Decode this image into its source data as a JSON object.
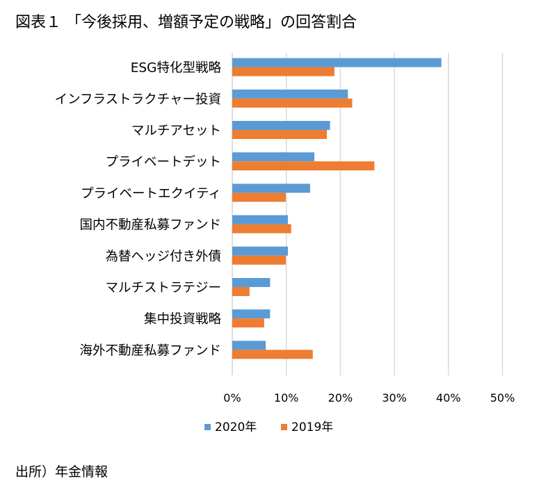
{
  "title": "図表１ 「今後採用、増額予定の戦略」の回答割合",
  "source": "出所）年金情報",
  "chart_data": {
    "type": "bar",
    "orientation": "horizontal",
    "title": "",
    "xlabel": "",
    "ylabel": "",
    "categories": [
      "ESG特化型戦略",
      "インフラストラクチャー投資",
      "マルチアセット",
      "プライベートデット",
      "プライベートエクイティ",
      "国内不動産私募ファンド",
      "為替ヘッジ付き外債",
      "マルチストラテジー",
      "集中投資戦略",
      "海外不動産私募ファンド"
    ],
    "series": [
      {
        "name": "2020年",
        "color": "#5b9bd5",
        "values": [
          38.7,
          21.4,
          18.1,
          15.2,
          14.4,
          10.3,
          10.3,
          7.0,
          7.0,
          6.2
        ]
      },
      {
        "name": "2019年",
        "color": "#ed7d31",
        "values": [
          18.9,
          22.2,
          17.5,
          26.3,
          9.9,
          10.9,
          9.9,
          3.2,
          5.9,
          14.9
        ]
      }
    ],
    "xlim": [
      0,
      50
    ],
    "xticks": [
      0,
      10,
      20,
      30,
      40,
      50
    ],
    "tick_labels": [
      "0%",
      "10%",
      "20%",
      "30%",
      "40%",
      "50%"
    ],
    "grid": true,
    "legend_position": "bottom"
  }
}
